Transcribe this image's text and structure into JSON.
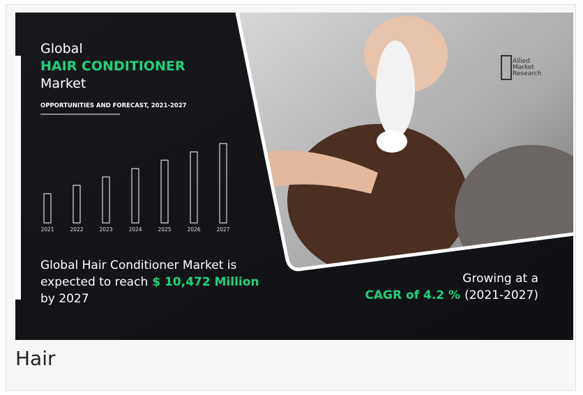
{
  "infographic": {
    "title_line1": "Global",
    "title_highlight": "HAIR CONDITIONER",
    "title_line3": "Market",
    "subtitle": "OPPORTUNITIES AND FORECAST, 2021-2027",
    "years": [
      "2021",
      "2022",
      "2023",
      "2024",
      "2025",
      "2026",
      "2027"
    ],
    "statement": {
      "line1": "Global Hair Conditioner Market is",
      "line2_prefix": "expected to reach",
      "line2_highlight": "$ 10,472 Million",
      "line3": "by 2027"
    },
    "growth": {
      "line1": "Growing at a",
      "highlight": "CAGR of 4.2 %",
      "period": "(2021-2027)"
    },
    "logo": {
      "lines": [
        "Allied",
        "Market",
        "Research"
      ]
    }
  },
  "caption": "Hair"
}
